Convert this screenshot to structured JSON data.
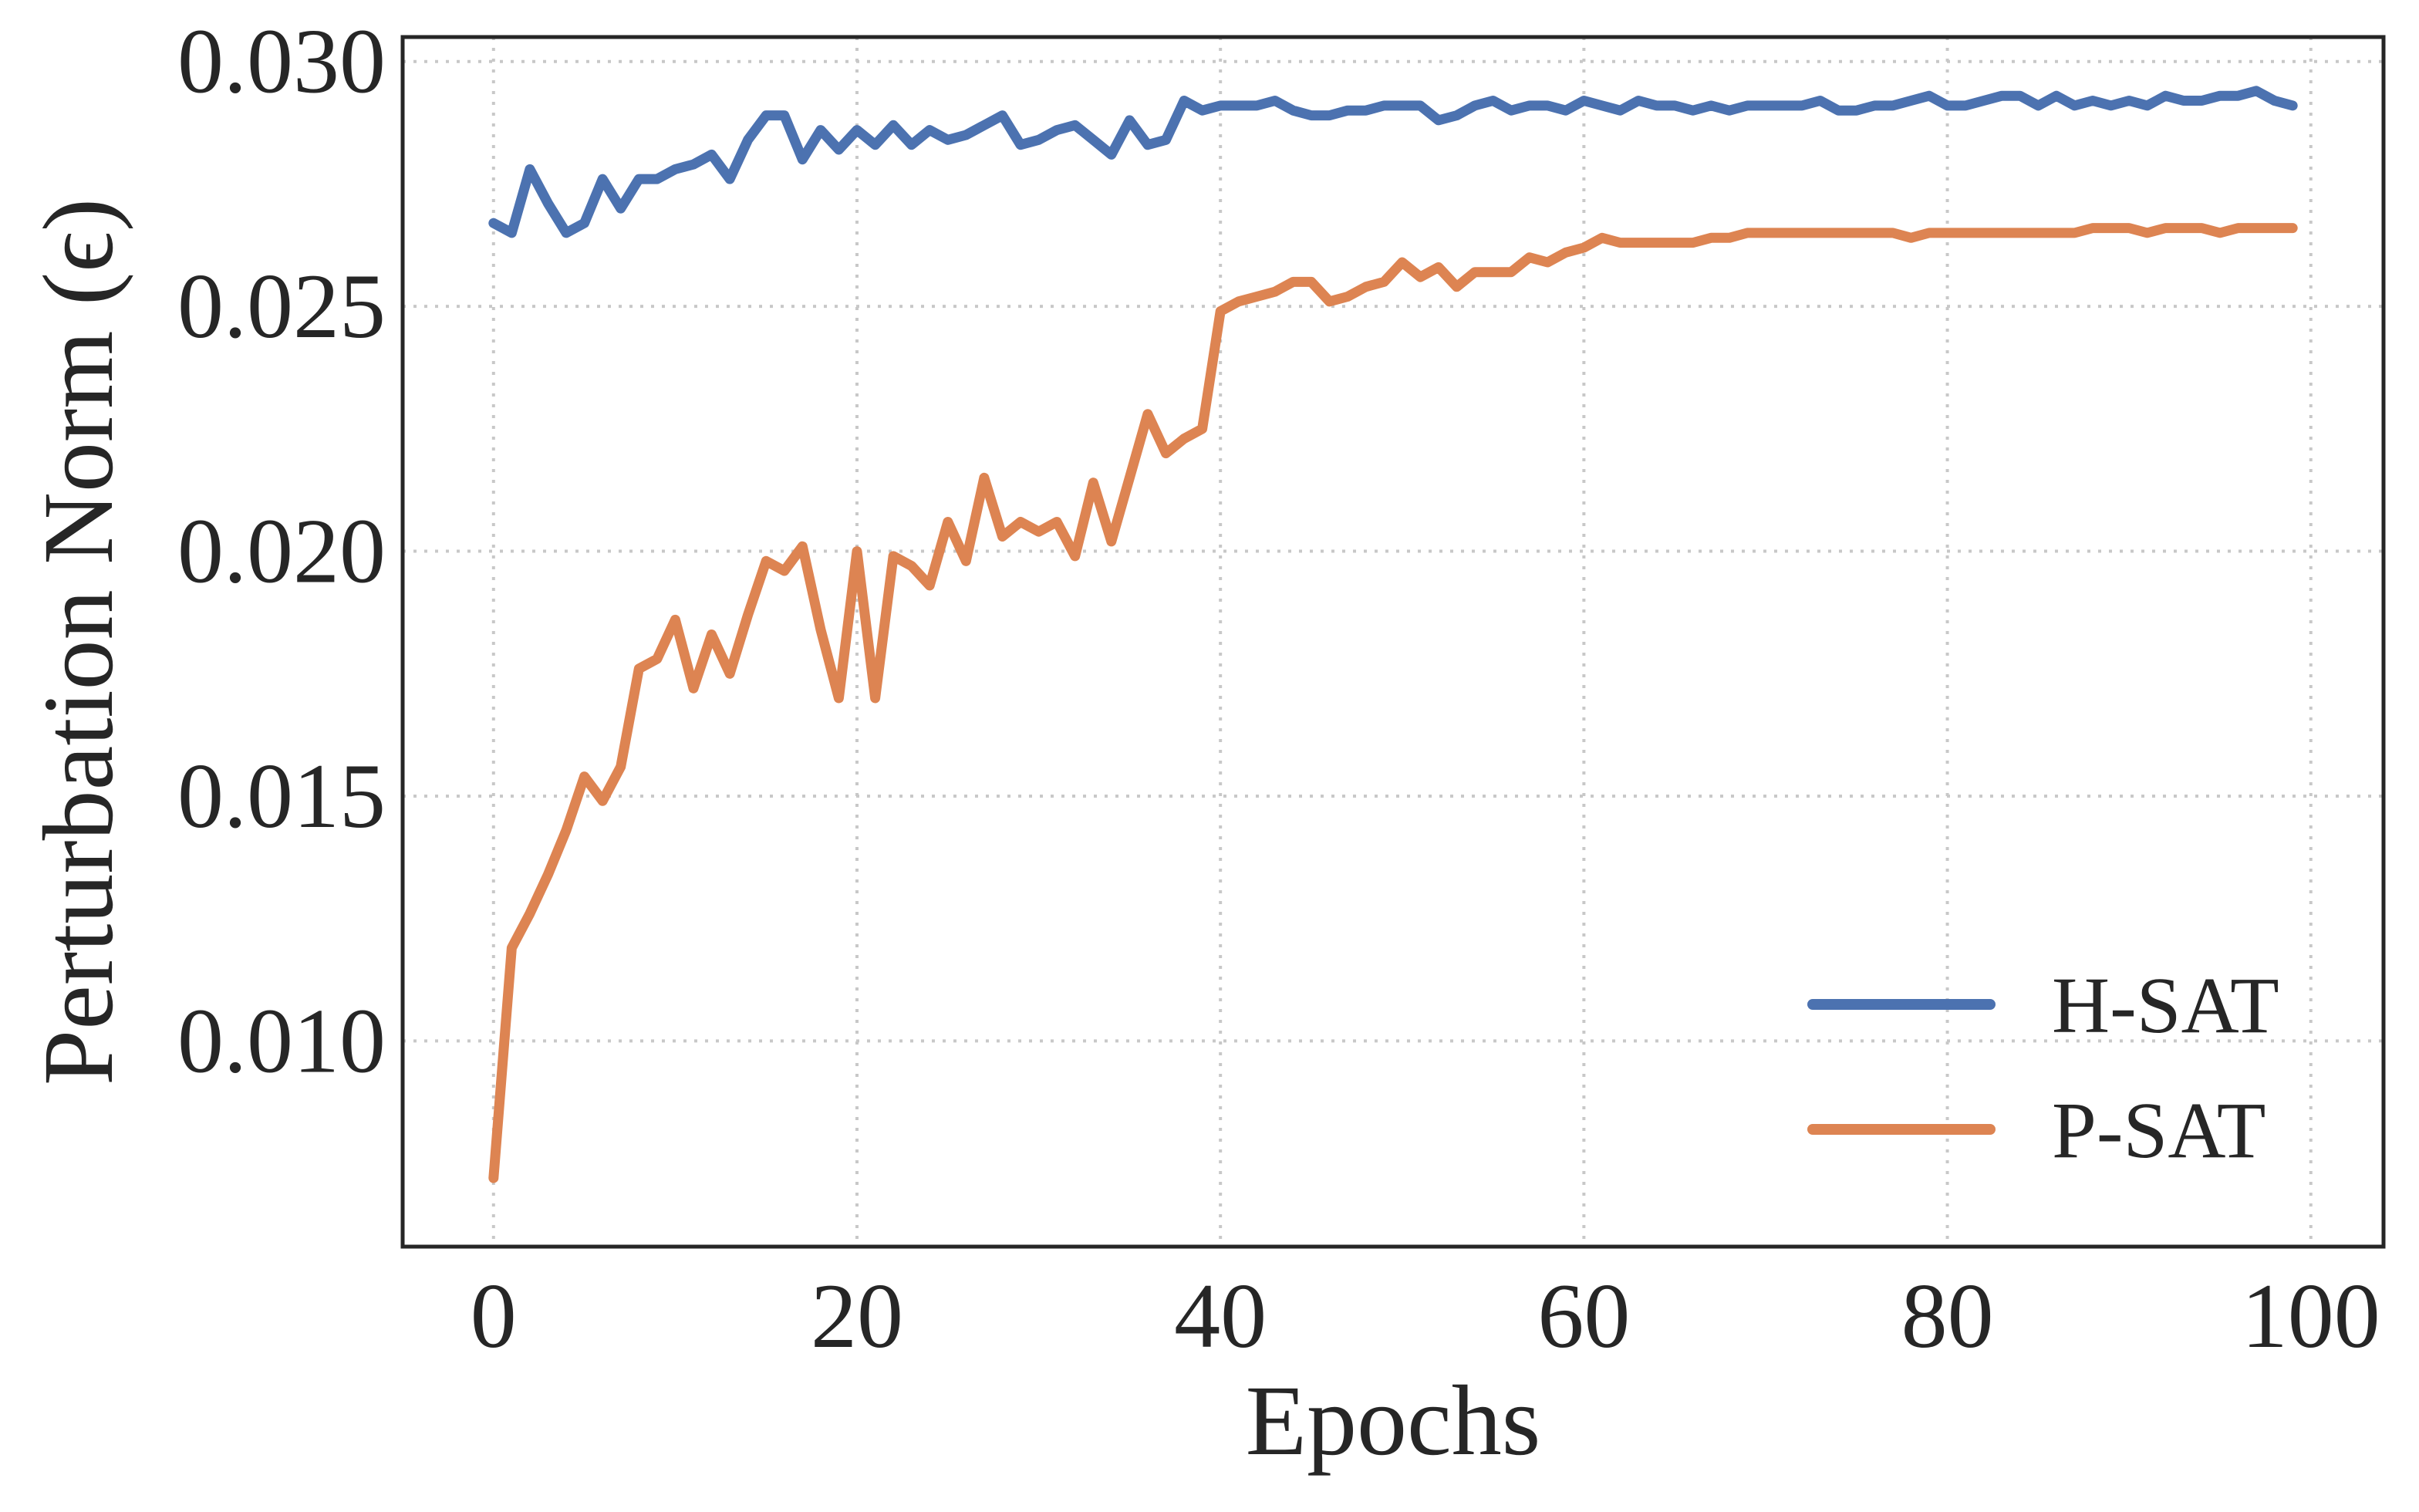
{
  "chart_data": {
    "type": "line",
    "xlabel": "Epochs",
    "ylabel": "Perturbation Norm (ϵ)",
    "xlim": [
      -5,
      104
    ],
    "ylim": [
      0.0058,
      0.0305
    ],
    "xticks": [
      0,
      20,
      40,
      60,
      80,
      100
    ],
    "xtick_labels": [
      "0",
      "20",
      "40",
      "60",
      "80",
      "100"
    ],
    "yticks": [
      0.01,
      0.015,
      0.02,
      0.025,
      0.03
    ],
    "ytick_labels": [
      "0.010",
      "0.015",
      "0.020",
      "0.025",
      "0.030"
    ],
    "grid": true,
    "legend_position": "lower-right",
    "series": [
      {
        "name": "H-SAT",
        "color": "#4c72b0",
        "x": [
          0,
          1,
          2,
          3,
          4,
          5,
          6,
          7,
          8,
          9,
          10,
          11,
          12,
          13,
          14,
          15,
          16,
          17,
          18,
          19,
          20,
          21,
          22,
          23,
          24,
          25,
          26,
          27,
          28,
          29,
          30,
          31,
          32,
          33,
          34,
          35,
          36,
          37,
          38,
          39,
          40,
          41,
          42,
          43,
          44,
          45,
          46,
          47,
          48,
          49,
          50,
          51,
          52,
          53,
          54,
          55,
          56,
          57,
          58,
          59,
          60,
          61,
          62,
          63,
          64,
          65,
          66,
          67,
          68,
          69,
          70,
          71,
          72,
          73,
          74,
          75,
          76,
          77,
          78,
          79,
          80,
          81,
          82,
          83,
          84,
          85,
          86,
          87,
          88,
          89,
          90,
          91,
          92,
          93,
          94,
          95,
          96,
          97,
          98,
          99
        ],
        "y": [
          0.0267,
          0.0265,
          0.0278,
          0.0271,
          0.0265,
          0.0267,
          0.0276,
          0.027,
          0.0276,
          0.0276,
          0.0278,
          0.0279,
          0.0281,
          0.0276,
          0.0284,
          0.0289,
          0.0289,
          0.028,
          0.0286,
          0.0282,
          0.0286,
          0.0283,
          0.0287,
          0.0283,
          0.0286,
          0.0284,
          0.0285,
          0.0287,
          0.0289,
          0.0283,
          0.0284,
          0.0286,
          0.0287,
          0.0284,
          0.0281,
          0.0288,
          0.0283,
          0.0284,
          0.0292,
          0.029,
          0.0291,
          0.0291,
          0.0291,
          0.0292,
          0.029,
          0.0289,
          0.0289,
          0.029,
          0.029,
          0.0291,
          0.0291,
          0.0291,
          0.0288,
          0.0289,
          0.0291,
          0.0292,
          0.029,
          0.0291,
          0.0291,
          0.029,
          0.0292,
          0.0291,
          0.029,
          0.0292,
          0.0291,
          0.0291,
          0.029,
          0.0291,
          0.029,
          0.0291,
          0.0291,
          0.0291,
          0.0291,
          0.0292,
          0.029,
          0.029,
          0.0291,
          0.0291,
          0.0292,
          0.0293,
          0.0291,
          0.0291,
          0.0292,
          0.0293,
          0.0293,
          0.0291,
          0.0293,
          0.0291,
          0.0292,
          0.0291,
          0.0292,
          0.0291,
          0.0293,
          0.0292,
          0.0292,
          0.0293,
          0.0293,
          0.0294,
          0.0292,
          0.0291
        ]
      },
      {
        "name": "P-SAT",
        "color": "#dd8452",
        "x": [
          0,
          1,
          2,
          3,
          4,
          5,
          6,
          7,
          8,
          9,
          10,
          11,
          12,
          13,
          14,
          15,
          16,
          17,
          18,
          19,
          20,
          21,
          22,
          23,
          24,
          25,
          26,
          27,
          28,
          29,
          30,
          31,
          32,
          33,
          34,
          35,
          36,
          37,
          38,
          39,
          40,
          41,
          42,
          43,
          44,
          45,
          46,
          47,
          48,
          49,
          50,
          51,
          52,
          53,
          54,
          55,
          56,
          57,
          58,
          59,
          60,
          61,
          62,
          63,
          64,
          65,
          66,
          67,
          68,
          69,
          70,
          71,
          72,
          73,
          74,
          75,
          76,
          77,
          78,
          79,
          80,
          81,
          82,
          83,
          84,
          85,
          86,
          87,
          88,
          89,
          90,
          91,
          92,
          93,
          94,
          95,
          96,
          97,
          98,
          99
        ],
        "y": [
          0.0072,
          0.0119,
          0.0126,
          0.0134,
          0.0143,
          0.0154,
          0.0149,
          0.0156,
          0.0176,
          0.0178,
          0.0186,
          0.0172,
          0.0183,
          0.0175,
          0.0187,
          0.0198,
          0.0196,
          0.0201,
          0.0184,
          0.017,
          0.02,
          0.017,
          0.0199,
          0.0197,
          0.0193,
          0.0206,
          0.0198,
          0.0215,
          0.0203,
          0.0206,
          0.0204,
          0.0206,
          0.0199,
          0.0214,
          0.0202,
          0.0215,
          0.0228,
          0.022,
          0.0223,
          0.0225,
          0.0249,
          0.0251,
          0.0252,
          0.0253,
          0.0255,
          0.0255,
          0.0251,
          0.0252,
          0.0254,
          0.0255,
          0.0259,
          0.0256,
          0.0258,
          0.0254,
          0.0257,
          0.0257,
          0.0257,
          0.026,
          0.0259,
          0.0261,
          0.0262,
          0.0264,
          0.0263,
          0.0263,
          0.0263,
          0.0263,
          0.0263,
          0.0264,
          0.0264,
          0.0265,
          0.0265,
          0.0265,
          0.0265,
          0.0265,
          0.0265,
          0.0265,
          0.0265,
          0.0265,
          0.0264,
          0.0265,
          0.0265,
          0.0265,
          0.0265,
          0.0265,
          0.0265,
          0.0265,
          0.0265,
          0.0265,
          0.0266,
          0.0266,
          0.0266,
          0.0265,
          0.0266,
          0.0266,
          0.0266,
          0.0265,
          0.0266,
          0.0266,
          0.0266,
          0.0266
        ]
      }
    ]
  }
}
